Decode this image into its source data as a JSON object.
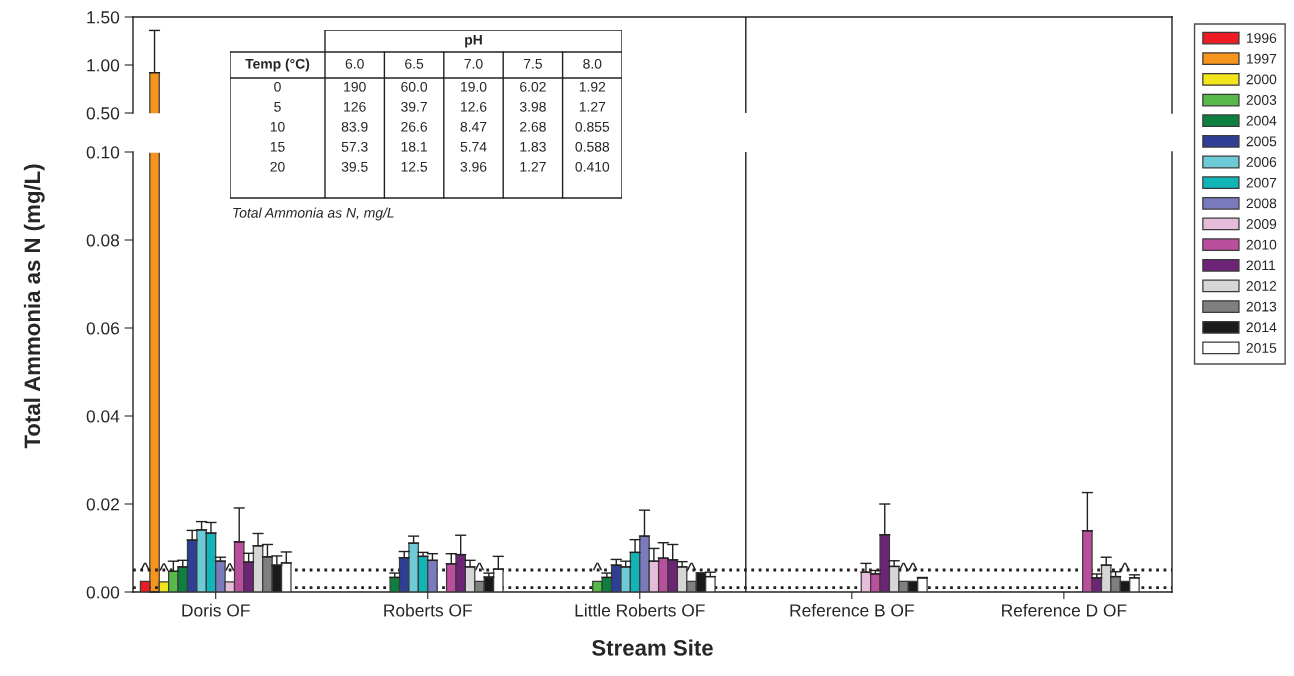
{
  "chart_data": [
    {
      "type": "bar",
      "ylim": [
        0.5,
        1.5
      ],
      "yticks": [
        {
          "value": 0.5,
          "label": "0.50"
        },
        {
          "value": 1.0,
          "label": "1.00"
        },
        {
          "value": 1.5,
          "label": "1.50"
        }
      ],
      "tick_labels": "y",
      "legend": "right",
      "series": [
        {
          "name": "1996",
          "color": "#ed1c24",
          "values": [
            null,
            null,
            null,
            null,
            null
          ]
        },
        {
          "name": "1997",
          "color": "#f7941d",
          "values": [
            0.92,
            null,
            null,
            null,
            null
          ],
          "errors": [
            [
              0.92,
              1.36
            ],
            null,
            null,
            null,
            null
          ]
        },
        {
          "name": "2000",
          "color": "#f2e51c",
          "values": [
            null,
            null,
            null,
            null,
            null
          ]
        },
        {
          "name": "2003",
          "color": "#57b947",
          "values": [
            null,
            null,
            null,
            null,
            null
          ]
        },
        {
          "name": "2004",
          "color": "#0d8040",
          "values": [
            null,
            null,
            null,
            null,
            null
          ]
        },
        {
          "name": "2005",
          "color": "#2e3f95",
          "values": [
            null,
            null,
            null,
            null,
            null
          ]
        },
        {
          "name": "2006",
          "color": "#6dcbd8",
          "values": [
            null,
            null,
            null,
            null,
            null
          ]
        },
        {
          "name": "2007",
          "color": "#12b5b5",
          "values": [
            null,
            null,
            null,
            null,
            null
          ]
        },
        {
          "name": "2008",
          "color": "#7a7bbd",
          "values": [
            null,
            null,
            null,
            null,
            null
          ]
        },
        {
          "name": "2009",
          "color": "#e5bcd9",
          "values": [
            null,
            null,
            null,
            null,
            null
          ]
        },
        {
          "name": "2010",
          "color": "#b94f9d",
          "values": [
            null,
            null,
            null,
            null,
            null
          ]
        },
        {
          "name": "2011",
          "color": "#6d2477",
          "values": [
            null,
            null,
            null,
            null,
            null
          ]
        },
        {
          "name": "2012",
          "color": "#d6d6d6",
          "values": [
            null,
            null,
            null,
            null,
            null
          ]
        },
        {
          "name": "2013",
          "color": "#7f7f7f",
          "values": [
            null,
            null,
            null,
            null,
            null
          ]
        },
        {
          "name": "2014",
          "color": "#1a1a1a",
          "values": [
            null,
            null,
            null,
            null,
            null
          ]
        },
        {
          "name": "2015",
          "color": "#ffffff",
          "values": [
            null,
            null,
            null,
            null,
            null
          ]
        }
      ]
    },
    {
      "type": "bar",
      "categories": [
        "Doris OF",
        "Roberts OF",
        "Little Roberts OF",
        "Reference B OF",
        "Reference D OF"
      ],
      "xlabel": "Stream Site",
      "ylabel": "Total Ammonia as N (mg/L)",
      "ylim": [
        0,
        0.1
      ],
      "yticks": [
        {
          "value": 0,
          "label": "0.00"
        },
        {
          "value": 0.02,
          "label": "0.02"
        },
        {
          "value": 0.04,
          "label": "0.04"
        },
        {
          "value": 0.06,
          "label": "0.06"
        },
        {
          "value": 0.08,
          "label": "0.08"
        },
        {
          "value": 0.1,
          "label": "0.10"
        }
      ],
      "ref_lines": [
        {
          "axis": "y",
          "value": 0.005,
          "color": "#231f20",
          "line_style": "dotted"
        },
        {
          "axis": "y",
          "value": 0.001,
          "color": "#231f20",
          "line_style": "dotted"
        }
      ],
      "annotations": [
        "pH",
        "Temp (°C)",
        "6.0",
        "6.5",
        "7.0",
        "7.5",
        "8.0",
        "0",
        "190",
        "60.0",
        "19.0",
        "6.02",
        "1.92",
        "5",
        "126",
        "39.7",
        "12.6",
        "3.98",
        "1.27",
        "10",
        "83.9",
        "26.6",
        "8.47",
        "2.68",
        "0.855",
        "15",
        "57.3",
        "18.1",
        "5.74",
        "1.83",
        "0.588",
        "20",
        "39.5",
        "12.5",
        "3.96",
        "1.27",
        "0.410",
        "Total Ammonia as N, mg/L"
      ],
      "series": [
        {
          "color": "#ed1c24",
          "values": [
            0.0024,
            null,
            null,
            null,
            null
          ],
          "value_labels": [
            "^",
            null,
            null,
            null,
            null
          ]
        },
        {
          "values": [
            null,
            null,
            null,
            null,
            null
          ]
        },
        {
          "color": "#f2e51c",
          "values": [
            0.0023,
            null,
            null,
            null,
            null
          ],
          "value_labels": [
            "^",
            null,
            null,
            null,
            null
          ]
        },
        {
          "color": "#57b947",
          "values": [
            0.0047,
            null,
            0.0024,
            null,
            null
          ],
          "errors": [
            [
              0.0047,
              0.007
            ],
            null,
            null,
            null,
            null
          ],
          "value_labels": [
            null,
            null,
            "^",
            null,
            null
          ]
        },
        {
          "color": "#0d8040",
          "values": [
            0.0057,
            0.0033,
            0.0033,
            null,
            null
          ],
          "errors": [
            [
              0.0057,
              0.0072
            ],
            [
              0.0033,
              0.0043
            ],
            [
              0.0033,
              0.0043
            ],
            null,
            null
          ]
        },
        {
          "color": "#2e3f95",
          "values": [
            0.0118,
            0.0078,
            0.0061,
            null,
            null
          ],
          "errors": [
            [
              0.0118,
              0.014
            ],
            [
              0.0078,
              0.0092
            ],
            [
              0.0061,
              0.0074
            ],
            null,
            null
          ]
        },
        {
          "color": "#6dcbd8",
          "values": [
            0.0141,
            0.0111,
            0.0057,
            null,
            null
          ],
          "errors": [
            [
              0.0141,
              0.016
            ],
            [
              0.0111,
              0.0127
            ],
            [
              0.0057,
              0.007
            ],
            null,
            null
          ]
        },
        {
          "color": "#12b5b5",
          "values": [
            0.0134,
            0.0081,
            0.009,
            null,
            null
          ],
          "errors": [
            [
              0.0134,
              0.0158
            ],
            [
              0.0081,
              0.009
            ],
            [
              0.009,
              0.0119
            ],
            null,
            null
          ]
        },
        {
          "color": "#7a7bbd",
          "values": [
            0.007,
            0.0072,
            0.0127,
            null,
            null
          ],
          "errors": [
            [
              0.007,
              0.0079
            ],
            [
              0.0072,
              0.0087
            ],
            [
              0.0127,
              0.0186
            ],
            null,
            null
          ]
        },
        {
          "color": "#e5bcd9",
          "values": [
            0.0023,
            null,
            0.007,
            0.0045,
            null
          ],
          "errors": [
            null,
            null,
            [
              0.007,
              0.0099
            ],
            [
              0.0045,
              0.0065
            ],
            null
          ],
          "value_labels": [
            "^",
            null,
            null,
            null,
            null
          ]
        },
        {
          "color": "#b94f9d",
          "values": [
            0.0114,
            0.0064,
            0.0077,
            0.0041,
            0.0139
          ],
          "errors": [
            [
              0.0114,
              0.0191
            ],
            [
              0.0064,
              0.0087
            ],
            [
              0.0077,
              0.0112
            ],
            [
              0.0041,
              0.0049
            ],
            [
              0.0139,
              0.0226
            ]
          ]
        },
        {
          "color": "#6d2477",
          "values": [
            0.0068,
            0.0085,
            0.0073,
            0.013,
            0.0032
          ],
          "errors": [
            [
              0.0068,
              0.0088
            ],
            [
              0.0085,
              0.0129
            ],
            [
              0.0073,
              0.0108
            ],
            [
              0.013,
              0.02
            ],
            [
              0.0032,
              0.0041
            ]
          ]
        },
        {
          "color": "#d6d6d6",
          "values": [
            0.0105,
            0.0057,
            0.0057,
            0.0058,
            0.0061
          ],
          "errors": [
            [
              0.0105,
              0.0133
            ],
            [
              0.0057,
              0.0072
            ],
            [
              0.0057,
              0.0069
            ],
            [
              0.0058,
              0.0071
            ],
            [
              0.0061,
              0.0079
            ]
          ]
        },
        {
          "color": "#7f7f7f",
          "values": [
            0.008,
            0.0024,
            0.0024,
            0.0024,
            0.0035
          ],
          "errors": [
            [
              0.008,
              0.0108
            ],
            null,
            null,
            null,
            [
              0.0035,
              0.0046
            ]
          ],
          "value_labels": [
            null,
            "^",
            "^",
            "^",
            null
          ]
        },
        {
          "color": "#1a1a1a",
          "values": [
            0.0061,
            0.0034,
            0.0044,
            0.0024,
            0.0024
          ],
          "errors": [
            [
              0.0061,
              0.0082
            ],
            [
              0.0034,
              0.0043
            ],
            null,
            null,
            null
          ],
          "value_labels": [
            null,
            null,
            null,
            "^",
            "^"
          ]
        },
        {
          "color": "#ffffff",
          "values": [
            0.0066,
            0.0052,
            0.0035,
            0.0032,
            0.0032
          ],
          "errors": [
            [
              0.0066,
              0.0091
            ],
            [
              0.0052,
              0.0081
            ],
            [
              0.0035,
              0.0045
            ],
            [
              0.0032,
              0.0033
            ],
            [
              0.0032,
              0.0039
            ]
          ]
        }
      ]
    }
  ]
}
